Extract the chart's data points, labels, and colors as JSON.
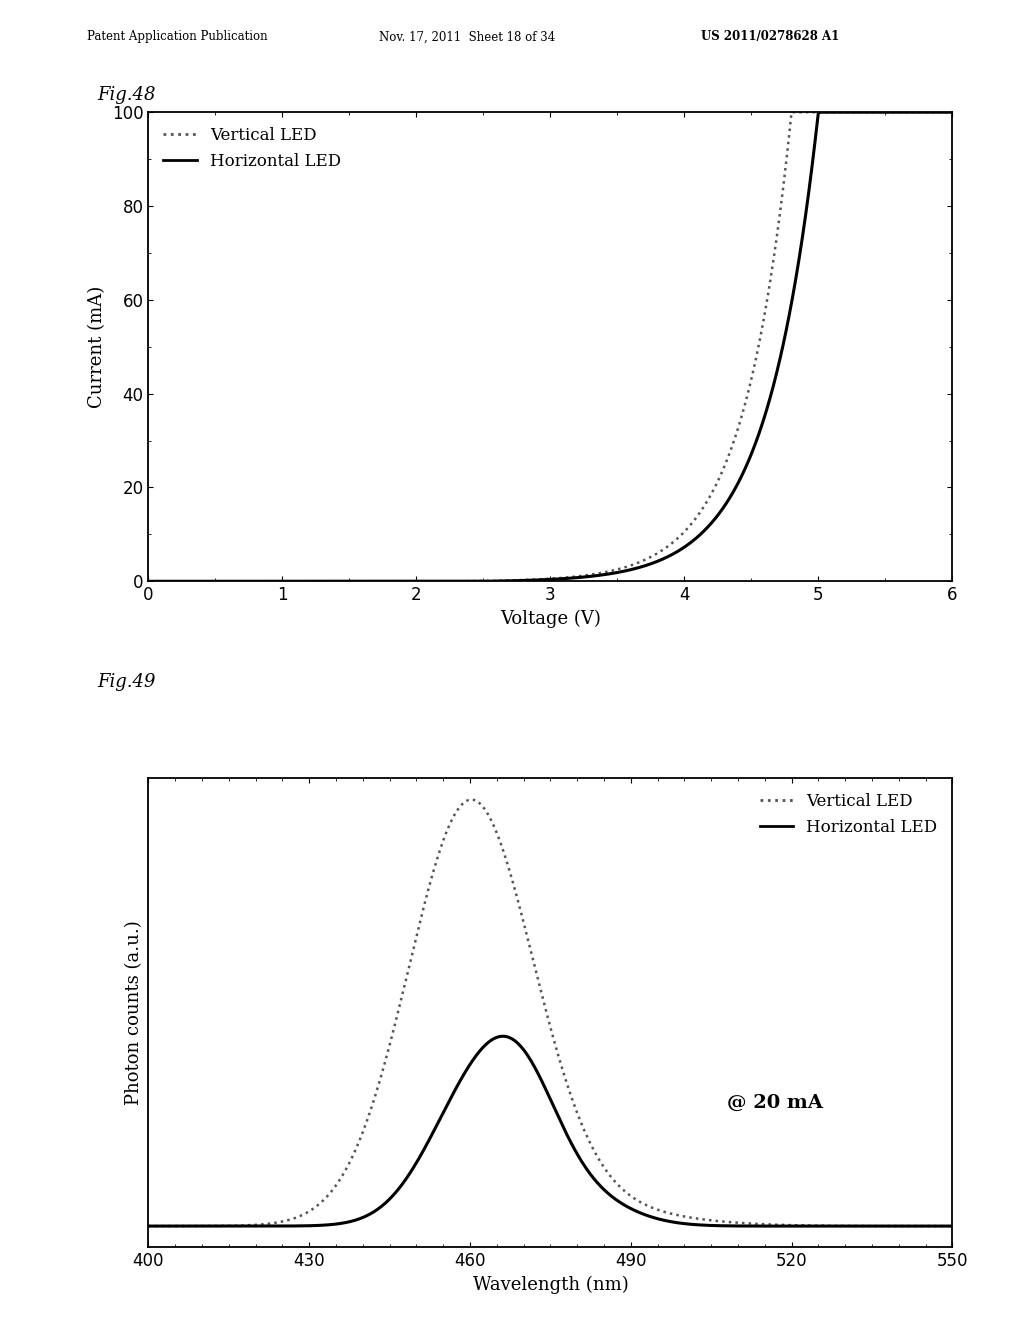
{
  "header_left": "Patent Application Publication",
  "header_mid": "Nov. 17, 2011  Sheet 18 of 34",
  "header_right": "US 2011/0278628 A1",
  "fig48_label": "Fig.48",
  "fig49_label": "Fig.49",
  "fig48": {
    "xlabel": "Voltage (V)",
    "ylabel": "Current (mA)",
    "xlim": [
      0,
      6
    ],
    "ylim": [
      0,
      100
    ],
    "xticks": [
      0,
      1,
      2,
      3,
      4,
      5,
      6
    ],
    "yticks": [
      0,
      20,
      40,
      60,
      80,
      100
    ],
    "legend_vertical": "Vertical LED",
    "legend_horizontal": "Horizontal LED",
    "vert_V0": 2.3,
    "vert_n": 2.8,
    "vert_scale": 4.8,
    "horiz_V0": 2.5,
    "horiz_n": 2.6,
    "horiz_scale": 5.0
  },
  "fig49": {
    "xlabel": "Wavelength (nm)",
    "ylabel": "Photon counts (a.u.)",
    "xlim": [
      400,
      550
    ],
    "xticks": [
      400,
      430,
      460,
      490,
      520,
      550
    ],
    "annotation": "@ 20 mA",
    "legend_vertical": "Vertical LED",
    "legend_horizontal": "Horizontal LED"
  },
  "background_color": "#ffffff",
  "text_color": "#000000",
  "line_color_solid": "#000000",
  "line_color_dotted": "#555555"
}
